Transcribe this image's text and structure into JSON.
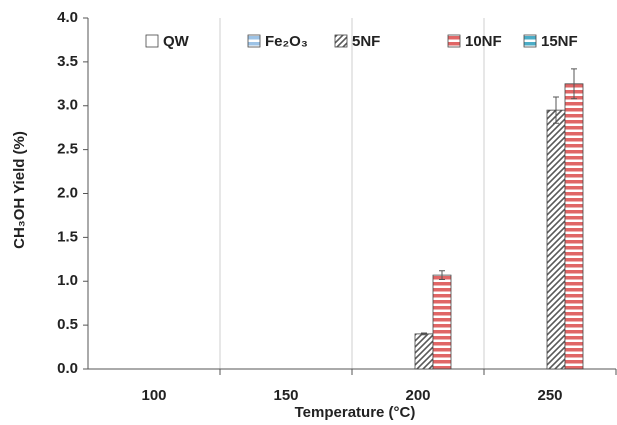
{
  "chart_data": {
    "type": "bar",
    "categories": [
      "100",
      "150",
      "200",
      "250"
    ],
    "x_label": "Temperature (°C)",
    "y_label": "CH₃OH Yield (%)",
    "series": [
      {
        "name": "QW",
        "color": "#ffffff",
        "values": [
          0,
          0,
          0,
          0
        ],
        "errors": [
          null,
          null,
          null,
          null
        ]
      },
      {
        "name": "Fe₂O₃",
        "color": "#9dc3e6",
        "values": [
          0,
          0,
          0,
          0
        ],
        "errors": [
          null,
          null,
          null,
          null
        ]
      },
      {
        "name": "5NF",
        "color": "#595959",
        "values": [
          0,
          0,
          0.4,
          2.95
        ],
        "errors": [
          null,
          null,
          0.01,
          0.15
        ]
      },
      {
        "name": "10NF",
        "color": "#e06666",
        "values": [
          0,
          0,
          1.07,
          3.25
        ],
        "errors": [
          null,
          null,
          0.05,
          0.17
        ]
      },
      {
        "name": "15NF",
        "color": "#4bacc6",
        "values": [
          0,
          0,
          0,
          0
        ],
        "errors": [
          null,
          null,
          null,
          null
        ]
      }
    ],
    "ylim": [
      0,
      4
    ],
    "yticks": [
      {
        "value": 0,
        "label": "0.0"
      },
      0.5,
      {
        "value": 1,
        "label": "1.0"
      },
      1.5,
      {
        "value": 2,
        "label": "2.0"
      },
      2.5,
      {
        "value": 3,
        "label": "3.0"
      },
      3.5,
      {
        "value": 4,
        "label": "4.0"
      }
    ],
    "grid": true,
    "legend": "top"
  }
}
